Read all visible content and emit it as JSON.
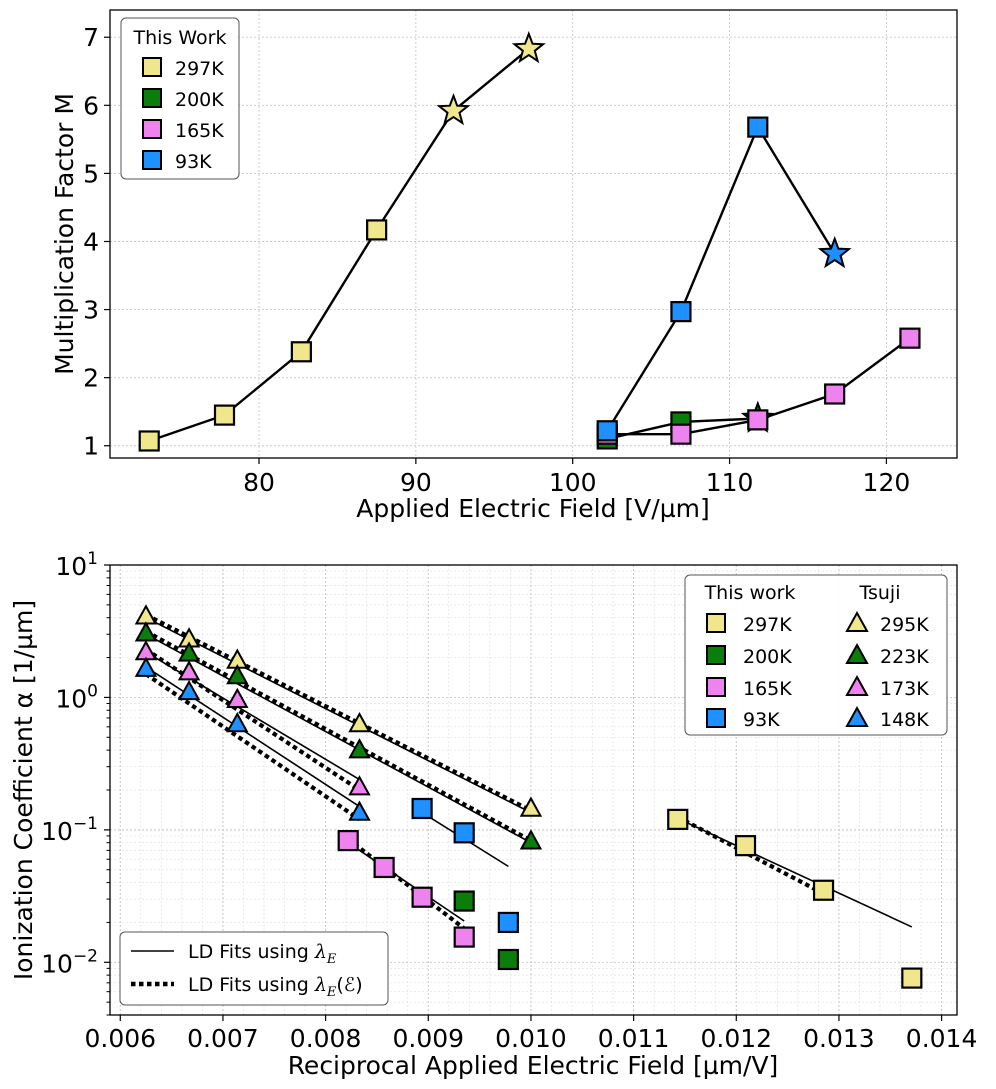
{
  "chart_data": [
    {
      "type": "line",
      "ylabel": "Multiplication Factor M",
      "xlabel": "Applied Electric Field [V/µm]",
      "xlim": [
        70.5,
        124.5
      ],
      "ylim": [
        0.82,
        7.4
      ],
      "xticks": [
        "80",
        "90",
        "100",
        "110",
        "120"
      ],
      "xtick_values": [
        80,
        90,
        100,
        110,
        120
      ],
      "yticks": [
        "1",
        "2",
        "3",
        "4",
        "5",
        "6",
        "7"
      ],
      "ytick_values": [
        1,
        2,
        3,
        4,
        5,
        6,
        7
      ],
      "grid": true,
      "legend": {
        "title": "This Work",
        "position": "top-left",
        "entries": [
          "297K",
          "200K",
          "165K",
          "93K"
        ]
      },
      "series": [
        {
          "name": "297K",
          "color": "#f0e68c",
          "marker": "square",
          "x": [
            73.0,
            77.8,
            82.7,
            87.5,
            92.4,
            97.2
          ],
          "y": [
            1.07,
            1.45,
            2.38,
            4.17,
            5.92,
            6.83
          ],
          "breakdown_star": [
            92.4,
            97.2
          ]
        },
        {
          "name": "200K",
          "color": "#0a7d0a",
          "marker": "square",
          "x": [
            102.2,
            106.9,
            111.8
          ],
          "y": [
            1.1,
            1.35,
            1.4
          ],
          "breakdown_star": [
            111.8
          ]
        },
        {
          "name": "165K",
          "color": "#ee82ee",
          "marker": "square",
          "x": [
            102.2,
            106.9,
            111.8,
            116.7,
            121.5
          ],
          "y": [
            1.17,
            1.17,
            1.38,
            1.76,
            2.58
          ],
          "breakdown_star": []
        },
        {
          "name": "93K",
          "color": "#1e90ff",
          "marker": "square",
          "x": [
            102.2,
            106.9,
            111.8,
            116.7
          ],
          "y": [
            1.22,
            2.97,
            5.68,
            3.82
          ],
          "breakdown_star": [
            116.7
          ]
        }
      ]
    },
    {
      "type": "scatter",
      "ylabel": "Ionization Coefficient α [1/µm]",
      "xlabel": "Reciprocal Applied Electric Field [µm/V]",
      "yscale": "log",
      "xlim": [
        0.0059,
        0.01415
      ],
      "ylim": [
        0.004,
        10
      ],
      "xticks": [
        "0.006",
        "0.007",
        "0.008",
        "0.009",
        "0.010",
        "0.011",
        "0.012",
        "0.013",
        "0.014"
      ],
      "xtick_values": [
        0.006,
        0.007,
        0.008,
        0.009,
        0.01,
        0.011,
        0.012,
        0.013,
        0.014
      ],
      "yticks": [
        {
          "base": "10",
          "exp": "1",
          "value": 10
        },
        {
          "base": "10",
          "exp": "0",
          "value": 1
        },
        {
          "base": "10",
          "exp": "−1",
          "value": 0.1
        },
        {
          "base": "10",
          "exp": "−2",
          "value": 0.01
        }
      ],
      "grid": true,
      "legend": {
        "position": "top-right",
        "col1_title": "This work",
        "col2_title": "Tsuji",
        "entries_this_work": [
          "297K",
          "200K",
          "165K",
          "93K"
        ],
        "entries_tsuji": [
          "295K",
          "223K",
          "173K",
          "148K"
        ]
      },
      "fit_legend": {
        "position": "bottom-left",
        "solid_prefix": "LD Fits using ",
        "solid_symbol": "λ",
        "solid_sub": "E",
        "solid_suffix": "",
        "dotted_prefix": "LD Fits using ",
        "dotted_symbol": "λ",
        "dotted_sub": "E",
        "dotted_suffix": "(ℰ)"
      },
      "this_work": [
        {
          "name": "297K",
          "color": "#f0e68c",
          "x": [
            0.01143,
            0.01209,
            0.01285,
            0.01371
          ],
          "y": [
            0.12,
            0.076,
            0.035,
            0.0076
          ]
        },
        {
          "name": "200K",
          "color": "#0a7d0a",
          "x": [
            0.00935,
            0.00978
          ],
          "y": [
            0.029,
            0.0105
          ]
        },
        {
          "name": "165K",
          "color": "#ee82ee",
          "x": [
            0.00822,
            0.00857,
            0.00894,
            0.00935
          ],
          "y": [
            0.083,
            0.052,
            0.031,
            0.0155
          ]
        },
        {
          "name": "93K",
          "color": "#1e90ff",
          "x": [
            0.00894,
            0.00935,
            0.00978
          ],
          "y": [
            0.145,
            0.095,
            0.02
          ]
        }
      ],
      "tsuji": [
        {
          "name": "295K",
          "color": "#f0e68c",
          "x": [
            0.00625,
            0.00667,
            0.00714,
            0.00833,
            0.01
          ],
          "y": [
            4.1,
            2.75,
            1.9,
            0.63,
            0.145
          ]
        },
        {
          "name": "223K",
          "color": "#0a7d0a",
          "x": [
            0.00625,
            0.00667,
            0.00714,
            0.00833,
            0.01
          ],
          "y": [
            3.05,
            2.15,
            1.45,
            0.4,
            0.082
          ]
        },
        {
          "name": "173K",
          "color": "#ee82ee",
          "x": [
            0.00625,
            0.00667,
            0.00714,
            0.00833
          ],
          "y": [
            2.2,
            1.55,
            0.96,
            0.21
          ]
        },
        {
          "name": "148K",
          "color": "#1e90ff",
          "x": [
            0.00625,
            0.00667,
            0.00714,
            0.00833
          ],
          "y": [
            1.65,
            1.1,
            0.63,
            0.135
          ]
        }
      ],
      "fit_lines": [
        {
          "style": "solid",
          "x": [
            0.00625,
            0.01
          ],
          "y": [
            4.0,
            0.135
          ]
        },
        {
          "style": "dotted",
          "x": [
            0.00625,
            0.01
          ],
          "y": [
            4.2,
            0.14
          ]
        },
        {
          "style": "solid",
          "x": [
            0.00625,
            0.01
          ],
          "y": [
            3.0,
            0.08
          ]
        },
        {
          "style": "dotted",
          "x": [
            0.00625,
            0.01
          ],
          "y": [
            3.15,
            0.083
          ]
        },
        {
          "style": "solid",
          "x": [
            0.00625,
            0.00833
          ],
          "y": [
            2.2,
            0.24
          ]
        },
        {
          "style": "dotted",
          "x": [
            0.00625,
            0.00833
          ],
          "y": [
            2.3,
            0.2
          ]
        },
        {
          "style": "solid",
          "x": [
            0.00625,
            0.00833
          ],
          "y": [
            1.7,
            0.15
          ]
        },
        {
          "style": "dotted",
          "x": [
            0.00625,
            0.00833
          ],
          "y": [
            1.5,
            0.12
          ]
        },
        {
          "style": "solid",
          "x": [
            0.00822,
            0.00935
          ],
          "y": [
            0.08,
            0.0205
          ]
        },
        {
          "style": "dotted",
          "x": [
            0.00822,
            0.00935
          ],
          "y": [
            0.085,
            0.018
          ]
        },
        {
          "style": "solid",
          "x": [
            0.00894,
            0.00978
          ],
          "y": [
            0.135,
            0.053
          ]
        },
        {
          "style": "solid",
          "x": [
            0.01143,
            0.01371
          ],
          "y": [
            0.122,
            0.0185
          ]
        },
        {
          "style": "dotted",
          "x": [
            0.01143,
            0.01285
          ],
          "y": [
            0.125,
            0.033
          ]
        }
      ]
    }
  ]
}
